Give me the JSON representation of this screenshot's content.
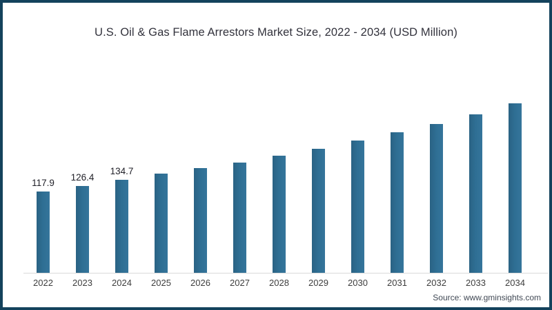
{
  "chart_data": {
    "type": "bar",
    "title": "U.S. Oil & Gas Flame Arrestors Market Size, 2022 - 2034 (USD Million)",
    "categories": [
      "2022",
      "2023",
      "2024",
      "2025",
      "2026",
      "2027",
      "2028",
      "2029",
      "2030",
      "2031",
      "2032",
      "2033",
      "2034"
    ],
    "values": [
      117.9,
      126.4,
      134.7,
      144.3,
      152.2,
      160.4,
      170.3,
      180.4,
      192.1,
      203.7,
      216.2,
      230.4,
      246.1
    ],
    "data_labels": [
      "117.9",
      "126.4",
      "134.7",
      "",
      "",
      "",
      "",
      "",
      "",
      "",
      "",
      "",
      ""
    ],
    "xlabel": "",
    "ylabel": "",
    "ylim": [
      0,
      270
    ],
    "grid": false,
    "legend": false,
    "bar_color": "#2e6e93"
  },
  "source_text": "Source: www.gminsights.com",
  "colors": {
    "frame_border": "#14425c",
    "bar": "#2e6e93",
    "axis_line": "#d9d9d9",
    "title_text": "#32323c",
    "tick_text": "#3d3d3d",
    "source_text": "#404854"
  }
}
